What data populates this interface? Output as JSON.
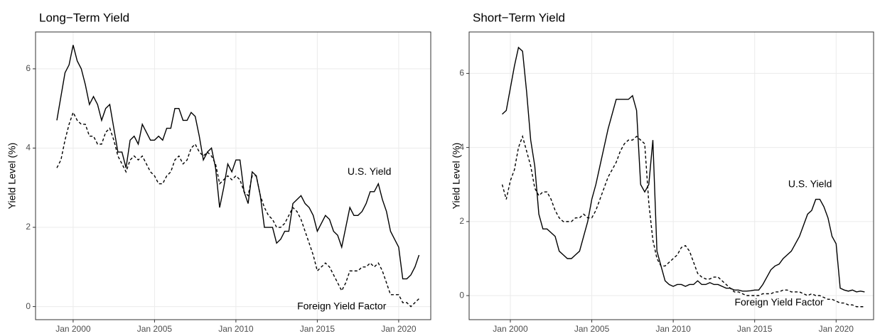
{
  "chart_data": [
    {
      "type": "line",
      "title": "Long−Term Yield",
      "ylabel": "Yield Level (%)",
      "x": [
        1999,
        1999.25,
        1999.5,
        1999.75,
        2000,
        2000.25,
        2000.5,
        2000.75,
        2001,
        2001.25,
        2001.5,
        2001.75,
        2002,
        2002.25,
        2002.5,
        2002.75,
        2003,
        2003.25,
        2003.5,
        2003.75,
        2004,
        2004.25,
        2004.5,
        2004.75,
        2005,
        2005.25,
        2005.5,
        2005.75,
        2006,
        2006.25,
        2006.5,
        2006.75,
        2007,
        2007.25,
        2007.5,
        2007.75,
        2008,
        2008.25,
        2008.5,
        2008.75,
        2009,
        2009.25,
        2009.5,
        2009.75,
        2010,
        2010.25,
        2010.5,
        2010.75,
        2011,
        2011.25,
        2011.5,
        2011.75,
        2012,
        2012.25,
        2012.5,
        2012.75,
        2013,
        2013.25,
        2013.5,
        2013.75,
        2014,
        2014.25,
        2014.5,
        2014.75,
        2015,
        2015.25,
        2015.5,
        2015.75,
        2016,
        2016.25,
        2016.5,
        2016.75,
        2017,
        2017.25,
        2017.5,
        2017.75,
        2018,
        2018.25,
        2018.5,
        2018.75,
        2019,
        2019.25,
        2019.5,
        2019.75,
        2020,
        2020.25,
        2020.5,
        2020.75,
        2021,
        2021.25
      ],
      "series": [
        {
          "name": "U.S. Yield",
          "color": "#000000",
          "dashed": false,
          "label_at": [
            2018.2,
            3.39
          ],
          "values": [
            4.7,
            5.3,
            5.9,
            6.1,
            6.6,
            6.2,
            6.0,
            5.6,
            5.1,
            5.3,
            5.1,
            4.7,
            5.0,
            5.1,
            4.5,
            3.9,
            3.9,
            3.5,
            4.2,
            4.3,
            4.1,
            4.6,
            4.4,
            4.2,
            4.2,
            4.3,
            4.2,
            4.5,
            4.5,
            5.0,
            5.0,
            4.7,
            4.7,
            4.9,
            4.8,
            4.3,
            3.7,
            3.9,
            4.0,
            3.5,
            2.5,
            3.0,
            3.6,
            3.4,
            3.7,
            3.7,
            2.9,
            2.6,
            3.4,
            3.3,
            2.8,
            2.0,
            2.0,
            2.0,
            1.6,
            1.7,
            1.9,
            1.9,
            2.6,
            2.7,
            2.8,
            2.6,
            2.5,
            2.3,
            1.9,
            2.1,
            2.3,
            2.2,
            1.9,
            1.8,
            1.5,
            2.0,
            2.5,
            2.3,
            2.3,
            2.4,
            2.6,
            2.9,
            2.9,
            3.1,
            2.7,
            2.4,
            1.9,
            1.7,
            1.5,
            0.7,
            0.7,
            0.8,
            1.0,
            1.3
          ]
        },
        {
          "name": "Foreign Yield Factor",
          "color": "#000000",
          "dashed": true,
          "label_at": [
            2016.5,
            0
          ],
          "values": [
            3.5,
            3.7,
            4.2,
            4.6,
            4.9,
            4.7,
            4.6,
            4.6,
            4.3,
            4.3,
            4.1,
            4.1,
            4.4,
            4.5,
            4.2,
            3.8,
            3.6,
            3.4,
            3.7,
            3.8,
            3.7,
            3.8,
            3.6,
            3.4,
            3.3,
            3.1,
            3.1,
            3.3,
            3.4,
            3.7,
            3.8,
            3.6,
            3.7,
            4.0,
            4.1,
            3.9,
            3.8,
            3.9,
            3.8,
            3.6,
            3.1,
            3.2,
            3.3,
            3.2,
            3.3,
            3.2,
            2.9,
            2.8,
            3.3,
            3.3,
            2.8,
            2.5,
            2.3,
            2.2,
            2.0,
            2.0,
            2.1,
            2.3,
            2.5,
            2.4,
            2.2,
            1.9,
            1.6,
            1.3,
            0.9,
            1.0,
            1.1,
            1.0,
            0.8,
            0.6,
            0.4,
            0.6,
            0.9,
            0.9,
            0.9,
            1.0,
            1.0,
            1.1,
            1.0,
            1.1,
            0.9,
            0.6,
            0.3,
            0.3,
            0.3,
            0.1,
            0.1,
            0.0,
            0.1,
            0.2
          ]
        }
      ],
      "xlim": [
        1997.69,
        2021.97
      ],
      "ylim": [
        -0.33,
        6.93
      ],
      "grid": true,
      "xticks": [
        {
          "value": 2000,
          "label": "Jan 2000"
        },
        {
          "value": 2005,
          "label": "Jan 2005"
        },
        {
          "value": 2010,
          "label": "Jan 2010"
        },
        {
          "value": 2015,
          "label": "Jan 2015"
        },
        {
          "value": 2020,
          "label": "Jan 2020"
        }
      ],
      "yticks": [
        0,
        2,
        4,
        6
      ]
    },
    {
      "type": "line",
      "title": "Short−Term Yield",
      "ylabel": "Yield Level (%)",
      "x": [
        1999.5,
        1999.75,
        2000,
        2000.25,
        2000.5,
        2000.75,
        2001,
        2001.25,
        2001.5,
        2001.75,
        2002,
        2002.25,
        2002.5,
        2002.75,
        2003,
        2003.25,
        2003.5,
        2003.75,
        2004,
        2004.25,
        2004.5,
        2004.75,
        2005,
        2005.25,
        2005.5,
        2005.75,
        2006,
        2006.25,
        2006.5,
        2006.75,
        2007,
        2007.25,
        2007.5,
        2007.75,
        2008,
        2008.25,
        2008.5,
        2008.75,
        2009,
        2009.25,
        2009.5,
        2009.75,
        2010,
        2010.25,
        2010.5,
        2010.75,
        2011,
        2011.25,
        2011.5,
        2011.75,
        2012,
        2012.25,
        2012.5,
        2012.75,
        2013,
        2013.25,
        2013.5,
        2013.75,
        2014,
        2014.25,
        2014.5,
        2014.75,
        2015,
        2015.25,
        2015.5,
        2015.75,
        2016,
        2016.25,
        2016.5,
        2016.75,
        2017,
        2017.25,
        2017.5,
        2017.75,
        2018,
        2018.25,
        2018.5,
        2018.75,
        2019,
        2019.25,
        2019.5,
        2019.75,
        2020,
        2020.25,
        2020.5,
        2020.75,
        2021,
        2021.25,
        2021.5,
        2021.75
      ],
      "series": [
        {
          "name": "U.S. Yield",
          "color": "#000000",
          "dashed": false,
          "label_at": [
            2018.4,
            3.0
          ],
          "values": [
            4.9,
            5.0,
            5.6,
            6.2,
            6.7,
            6.6,
            5.5,
            4.2,
            3.5,
            2.2,
            1.8,
            1.8,
            1.7,
            1.6,
            1.2,
            1.1,
            1.0,
            1.0,
            1.1,
            1.2,
            1.6,
            2.0,
            2.6,
            3.0,
            3.5,
            4.0,
            4.5,
            4.9,
            5.3,
            5.3,
            5.3,
            5.3,
            5.4,
            5.0,
            3.0,
            2.8,
            3.0,
            4.2,
            1.2,
            0.8,
            0.4,
            0.3,
            0.25,
            0.3,
            0.3,
            0.25,
            0.3,
            0.3,
            0.4,
            0.3,
            0.3,
            0.35,
            0.3,
            0.3,
            0.25,
            0.2,
            0.2,
            0.15,
            0.15,
            0.12,
            0.12,
            0.13,
            0.15,
            0.15,
            0.3,
            0.5,
            0.7,
            0.8,
            0.85,
            1.0,
            1.1,
            1.2,
            1.4,
            1.6,
            1.9,
            2.2,
            2.3,
            2.6,
            2.6,
            2.4,
            2.1,
            1.6,
            1.4,
            0.2,
            0.15,
            0.12,
            0.15,
            0.1,
            0.12,
            0.1
          ]
        },
        {
          "name": "Foreign Yield Factor",
          "color": "#000000",
          "dashed": true,
          "label_at": [
            2016.5,
            -0.2
          ],
          "values": [
            3.0,
            2.6,
            3.1,
            3.4,
            4.0,
            4.3,
            3.9,
            3.5,
            2.9,
            2.7,
            2.8,
            2.8,
            2.6,
            2.3,
            2.1,
            2.0,
            2.0,
            2.0,
            2.1,
            2.1,
            2.2,
            2.1,
            2.1,
            2.3,
            2.6,
            2.9,
            3.2,
            3.4,
            3.6,
            3.9,
            4.1,
            4.2,
            4.2,
            4.3,
            4.2,
            4.1,
            2.5,
            1.5,
            1.0,
            0.8,
            0.8,
            0.9,
            1.0,
            1.1,
            1.3,
            1.35,
            1.2,
            0.9,
            0.6,
            0.5,
            0.45,
            0.45,
            0.5,
            0.5,
            0.4,
            0.3,
            0.2,
            0.1,
            0.1,
            0.05,
            0.0,
            0.0,
            0.0,
            0.0,
            0.05,
            0.05,
            0.05,
            0.1,
            0.1,
            0.15,
            0.15,
            0.1,
            0.1,
            0.1,
            0.05,
            0.0,
            0.05,
            0.0,
            0.0,
            -0.05,
            -0.1,
            -0.1,
            -0.15,
            -0.2,
            -0.2,
            -0.25,
            -0.25,
            -0.3,
            -0.3,
            -0.3
          ]
        }
      ],
      "xlim": [
        1997.47,
        2022.3
      ],
      "ylim": [
        -0.65,
        7.12
      ],
      "grid": true,
      "xticks": [
        {
          "value": 2000,
          "label": "Jan 2000"
        },
        {
          "value": 2005,
          "label": "Jan 2005"
        },
        {
          "value": 2010,
          "label": "Jan 2010"
        },
        {
          "value": 2015,
          "label": "Jan 2015"
        },
        {
          "value": 2020,
          "label": "Jan 2020"
        }
      ],
      "yticks": [
        0,
        2,
        4,
        6
      ]
    }
  ]
}
